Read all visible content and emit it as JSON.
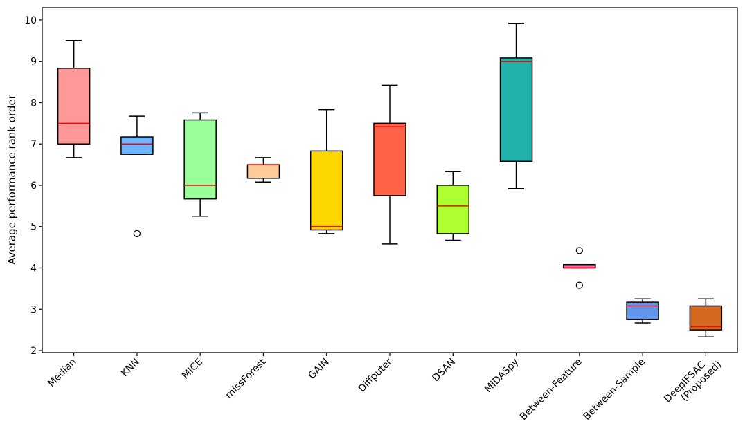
{
  "chart_data": {
    "type": "box",
    "ylabel": "Average performance rank order",
    "ylim": [
      1.95,
      10.3
    ],
    "yticks": [
      2,
      3,
      4,
      5,
      6,
      7,
      8,
      9,
      10
    ],
    "categories": [
      "Median",
      "KNN",
      "MICE",
      "missForest",
      "GAIN",
      "Diffputer",
      "DSAN",
      "MIDASpy",
      "Between-Feature",
      "Between-Sample",
      "DeepIFSAC\n(Proposed)"
    ],
    "boxes": [
      {
        "label": "Median",
        "whisker_low": 6.67,
        "q1": 7.0,
        "median": 7.5,
        "q3": 8.83,
        "whisker_high": 9.5,
        "outliers": [],
        "color": "#FF9999"
      },
      {
        "label": "KNN",
        "whisker_low": 6.75,
        "q1": 6.75,
        "median": 7.0,
        "q3": 7.17,
        "whisker_high": 7.67,
        "outliers": [
          4.83
        ],
        "color": "#6CB4FF"
      },
      {
        "label": "MICE",
        "whisker_low": 5.25,
        "q1": 5.67,
        "median": 6.0,
        "q3": 7.58,
        "whisker_high": 7.75,
        "outliers": [],
        "color": "#99FF99"
      },
      {
        "label": "missForest",
        "whisker_low": 6.08,
        "q1": 6.17,
        "median": 6.5,
        "q3": 6.5,
        "whisker_high": 6.67,
        "outliers": [],
        "color": "#FFCC99"
      },
      {
        "label": "GAIN",
        "whisker_low": 4.83,
        "q1": 4.92,
        "median": 5.0,
        "q3": 6.83,
        "whisker_high": 7.83,
        "outliers": [],
        "color": "#FFD700"
      },
      {
        "label": "Diffputer",
        "whisker_low": 4.58,
        "q1": 5.75,
        "median": 7.42,
        "q3": 7.5,
        "whisker_high": 8.42,
        "outliers": [],
        "color": "#FF6347"
      },
      {
        "label": "DSAN",
        "whisker_low": 4.67,
        "q1": 4.83,
        "median": 5.5,
        "q3": 6.0,
        "whisker_high": 6.33,
        "outliers": [],
        "color": "#ADFF2F"
      },
      {
        "label": "MIDASpy",
        "whisker_low": 5.92,
        "q1": 6.58,
        "median": 9.0,
        "q3": 9.08,
        "whisker_high": 9.92,
        "outliers": [],
        "color": "#20B2AA"
      },
      {
        "label": "Between-Feature",
        "whisker_low": 4.0,
        "q1": 4.0,
        "median": 4.0,
        "q3": 4.08,
        "whisker_high": 4.08,
        "outliers": [
          4.42,
          3.58
        ],
        "color": "#FF69B4"
      },
      {
        "label": "Between-Sample",
        "whisker_low": 2.67,
        "q1": 2.75,
        "median": 3.08,
        "q3": 3.17,
        "whisker_high": 3.25,
        "outliers": [],
        "color": "#6495ED"
      },
      {
        "label": "DeepIFSAC\n(Proposed)",
        "whisker_low": 2.33,
        "q1": 2.5,
        "median": 2.58,
        "q3": 3.08,
        "whisker_high": 3.25,
        "outliers": [],
        "color": "#D2691E"
      }
    ],
    "median_color": "#FF0000",
    "grid": false,
    "legend": "none"
  }
}
